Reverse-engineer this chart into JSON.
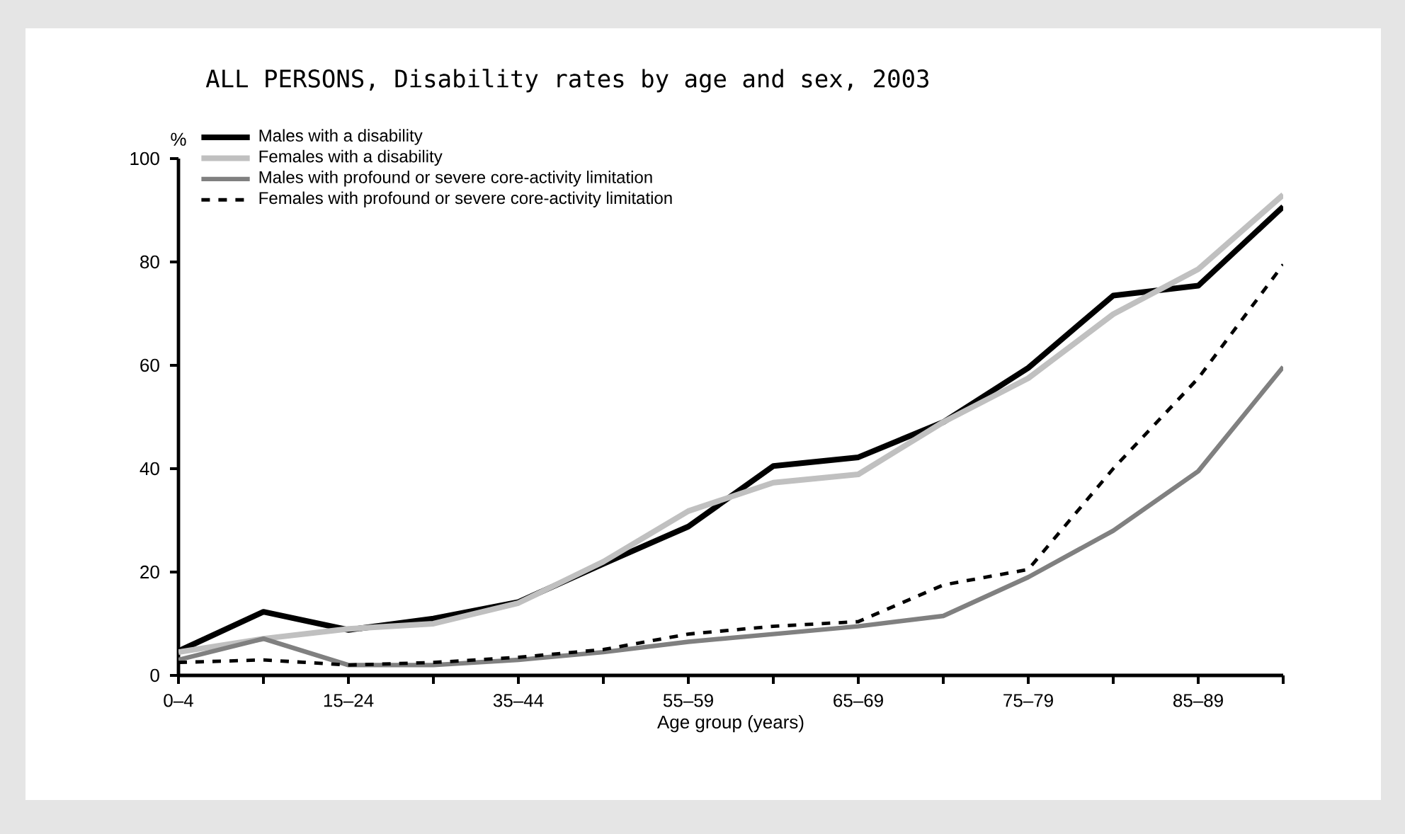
{
  "chart_data": {
    "type": "line",
    "title": "ALL PERSONS, Disability rates by age and sex, 2003",
    "xlabel": "Age group (years)",
    "ylabel": "%",
    "categories": [
      "0–4",
      null,
      "15–24",
      null,
      "35–44",
      null,
      "55–59",
      null,
      "65–69",
      null,
      "75–79",
      null,
      "85–89",
      null
    ],
    "series": [
      {
        "name": "Males with a disability",
        "color": "#000000",
        "line_style": "solid",
        "values": [
          4.7,
          12.3,
          8.8,
          11,
          14.2,
          21.6,
          28.8,
          40.5,
          42.2,
          49,
          59.5,
          73.5,
          75.4,
          90.7
        ]
      },
      {
        "name": "Females with a disability",
        "color": "#c0c0c0",
        "line_style": "solid",
        "values": [
          4.5,
          7.1,
          9,
          10,
          14,
          22,
          31.8,
          37.3,
          38.9,
          49,
          57.5,
          69.9,
          78.6,
          93
        ]
      },
      {
        "name": "Males with profound or severe core-activity limitation",
        "color": "#808080",
        "line_style": "solid",
        "values": [
          3,
          7.1,
          2,
          2,
          3,
          4.5,
          6.5,
          8,
          9.5,
          11.5,
          19,
          28,
          39.5,
          59.7
        ]
      },
      {
        "name": "Females with profound or severe core-activity limitation",
        "color": "#000000",
        "line_style": "dashed",
        "values": [
          2.5,
          3,
          2,
          2.5,
          3.5,
          5,
          8,
          9.5,
          10.4,
          17.5,
          20.5,
          40,
          57.5,
          79.5
        ]
      }
    ],
    "ylim": [
      0,
      100
    ],
    "yticks": [
      0,
      20,
      40,
      60,
      80,
      100
    ],
    "legend": "top left"
  }
}
